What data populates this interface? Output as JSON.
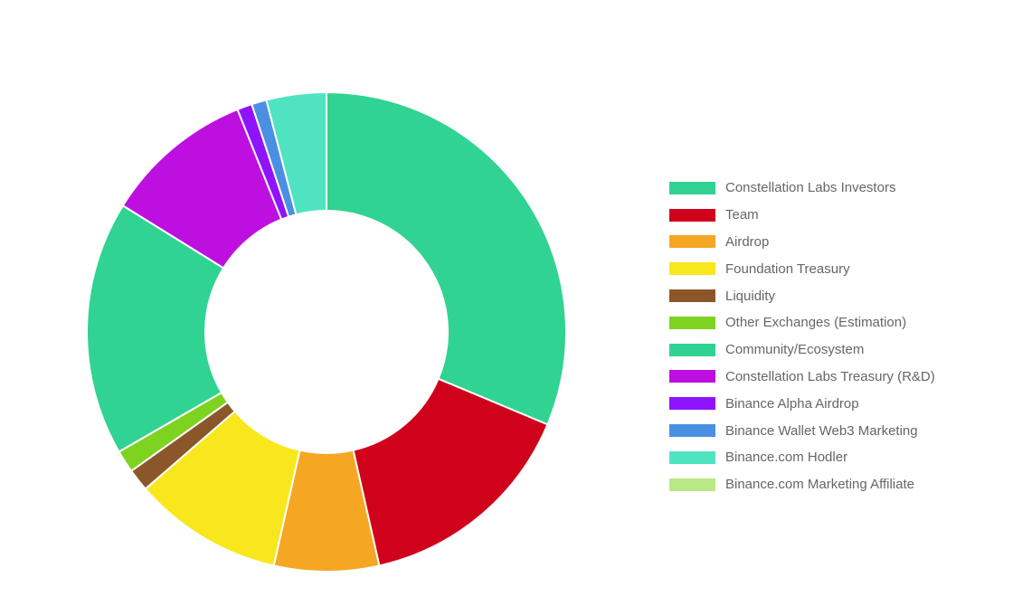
{
  "chart_data": {
    "type": "pie",
    "variant": "doughnut",
    "title": "",
    "legend_position": "right",
    "series": [
      {
        "name": "",
        "slices": [
          {
            "label": "Constellation Labs Investors",
            "value": 31.0,
            "color": "#31d392"
          },
          {
            "label": "Team",
            "value": 15.0,
            "color": "#d0021b"
          },
          {
            "label": "Airdrop",
            "value": 7.0,
            "color": "#f5a623"
          },
          {
            "label": "Foundation Treasury",
            "value": 10.0,
            "color": "#f8e71c"
          },
          {
            "label": "Liquidity",
            "value": 1.5,
            "color": "#8b572a"
          },
          {
            "label": "Other Exchanges (Estimation)",
            "value": 1.5,
            "color": "#7ed321"
          },
          {
            "label": "Community/Ecosystem",
            "value": 17.0,
            "color": "#31d392"
          },
          {
            "label": "Constellation Labs Treasury (R&D)",
            "value": 10.0,
            "color": "#bd10e0"
          },
          {
            "label": "Binance Alpha Airdrop",
            "value": 1.0,
            "color": "#9013fe"
          },
          {
            "label": "Binance Wallet Web3 Marketing",
            "value": 1.0,
            "color": "#4a90e2"
          },
          {
            "label": "Binance.com Hodler",
            "value": 4.0,
            "color": "#50e3c2"
          },
          {
            "label": "Binance.com Marketing Affiliate",
            "value": 0.0,
            "color": "#b8e986"
          }
        ]
      }
    ]
  }
}
